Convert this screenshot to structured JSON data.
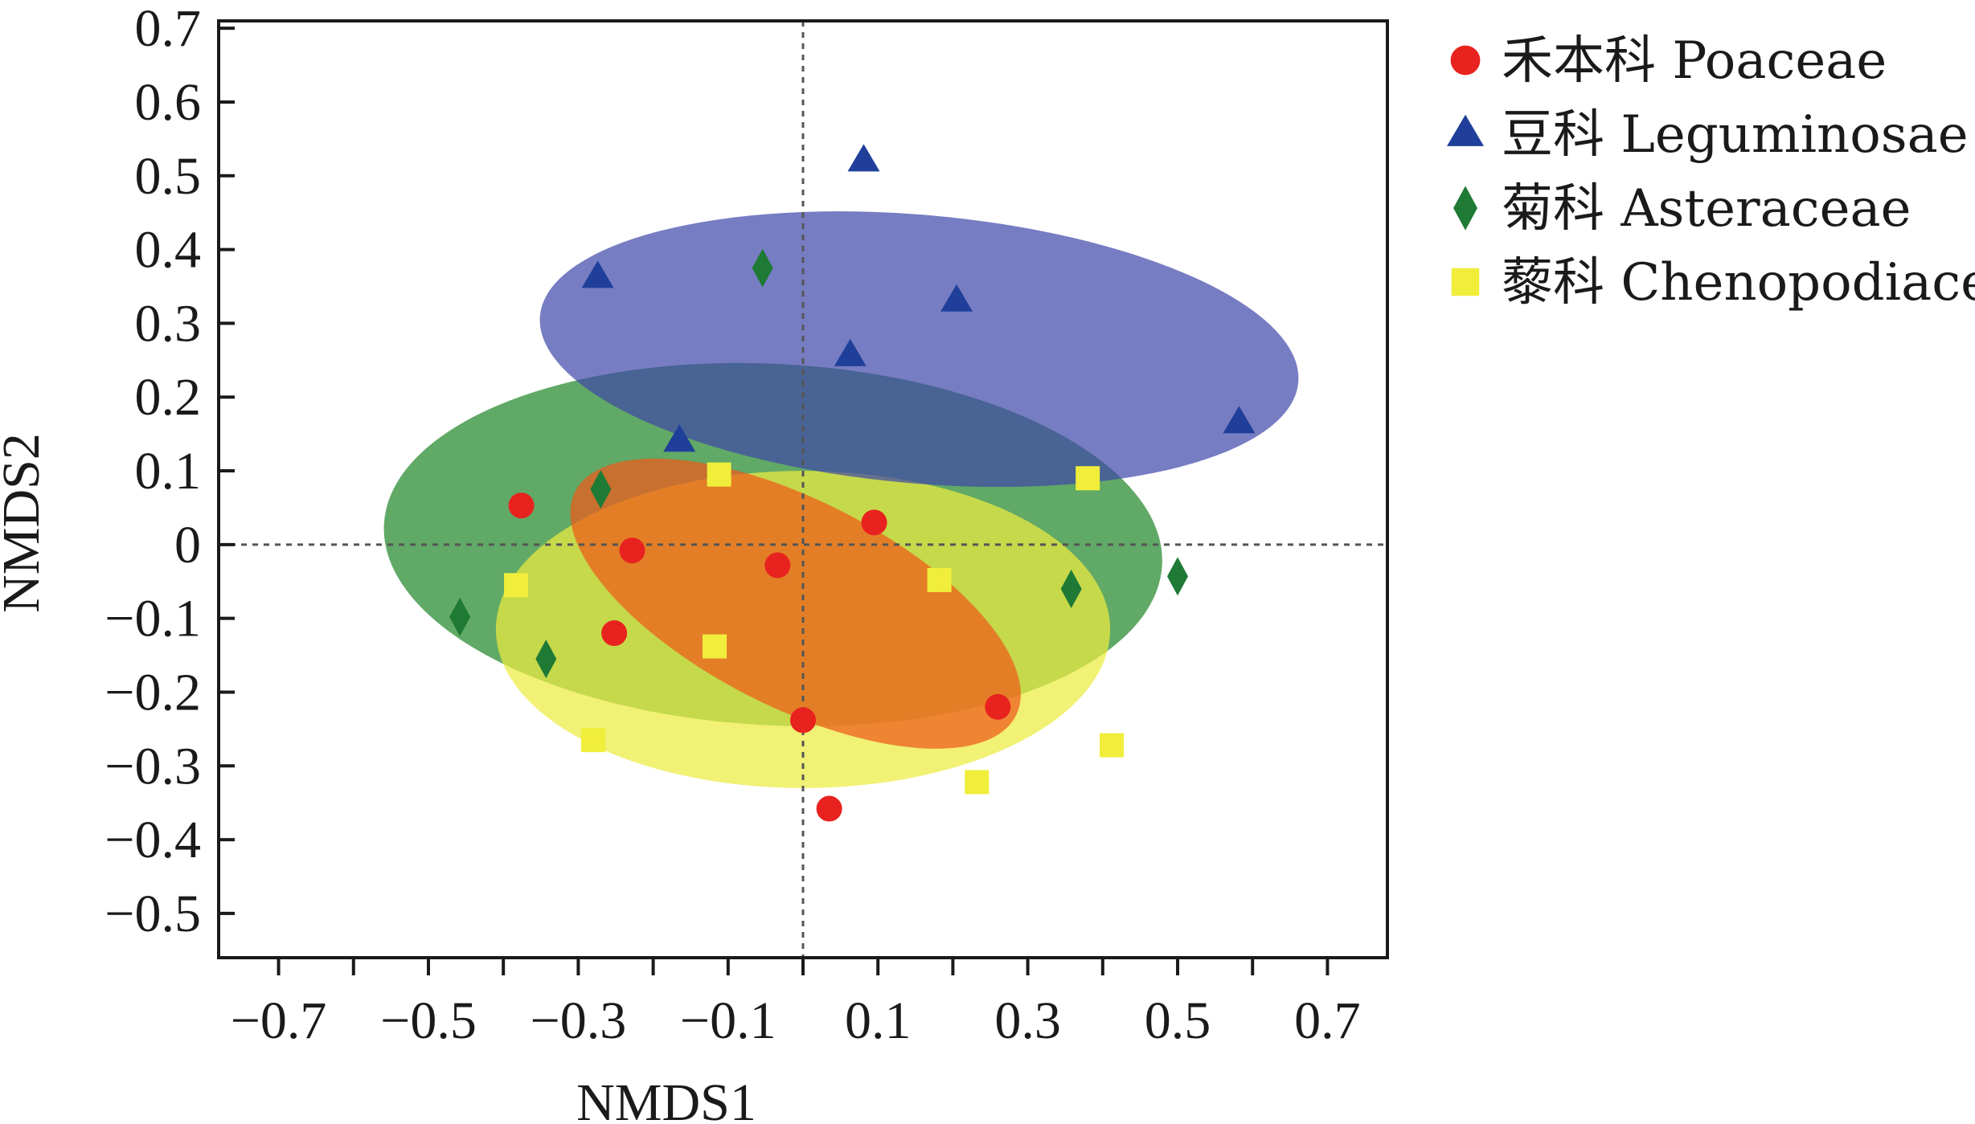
{
  "chart_data": {
    "type": "scatter",
    "xlabel": "NMDS1",
    "ylabel": "NMDS2",
    "xlim": [
      -0.78,
      0.78
    ],
    "ylim": [
      -0.56,
      0.71
    ],
    "xticks": [
      -0.7,
      -0.6,
      -0.5,
      -0.4,
      -0.3,
      -0.2,
      -0.1,
      0,
      0.1,
      0.2,
      0.3,
      0.4,
      0.5,
      0.6,
      0.7
    ],
    "xtick_labels": [
      {
        "value": -0.7,
        "label": "−0.7"
      },
      {
        "value": -0.5,
        "label": "−0.5"
      },
      {
        "value": -0.3,
        "label": "−0.3"
      },
      {
        "value": -0.1,
        "label": "−0.1"
      },
      {
        "value": 0.1,
        "label": "0.1"
      },
      {
        "value": 0.3,
        "label": "0.3"
      },
      {
        "value": 0.5,
        "label": "0.5"
      },
      {
        "value": 0.7,
        "label": "0.7"
      }
    ],
    "yticks": [
      {
        "value": 0.7,
        "label": "0.7"
      },
      {
        "value": 0.6,
        "label": "0.6"
      },
      {
        "value": 0.5,
        "label": "0.5"
      },
      {
        "value": 0.4,
        "label": "0.4"
      },
      {
        "value": 0.3,
        "label": "0.3"
      },
      {
        "value": 0.2,
        "label": "0.2"
      },
      {
        "value": 0.1,
        "label": "0.1"
      },
      {
        "value": 0,
        "label": "0"
      },
      {
        "value": -0.1,
        "label": "−0.1"
      },
      {
        "value": -0.2,
        "label": "−0.2"
      },
      {
        "value": -0.3,
        "label": "−0.3"
      },
      {
        "value": -0.4,
        "label": "−0.4"
      },
      {
        "value": -0.5,
        "label": "−0.5"
      }
    ],
    "reference_lines": {
      "x": 0,
      "y": 0,
      "style": "dotted"
    },
    "grid": false,
    "legend_position": "right",
    "series": [
      {
        "name": "禾本科 Poaceae",
        "marker": "circle",
        "color": "#e8221e",
        "ellipse_color": "#ee5a1a",
        "points": [
          [
            -0.376,
            0.053
          ],
          [
            -0.228,
            -0.008
          ],
          [
            -0.252,
            -0.12
          ],
          [
            -0.034,
            -0.028
          ],
          [
            0.095,
            0.03
          ],
          [
            0.0,
            -0.238
          ],
          [
            0.035,
            -0.358
          ],
          [
            0.26,
            -0.22
          ]
        ],
        "ellipse": {
          "cx": -0.01,
          "cy": -0.08,
          "rx": 0.33,
          "ry": 0.14,
          "angle_deg": -27
        }
      },
      {
        "name": "豆科 Leguminosae",
        "marker": "triangle",
        "color": "#1f3f9a",
        "ellipse_color": "#3d46a8",
        "points": [
          [
            0.081,
            0.52
          ],
          [
            -0.274,
            0.362
          ],
          [
            0.205,
            0.33
          ],
          [
            0.063,
            0.256
          ],
          [
            -0.165,
            0.14
          ],
          [
            0.582,
            0.165
          ]
        ],
        "ellipse": {
          "cx": 0.155,
          "cy": 0.265,
          "rx": 0.508,
          "ry": 0.182,
          "angle_deg": -5
        }
      },
      {
        "name": "菊科 Asteraceae",
        "marker": "diamond",
        "color": "#1e7a35",
        "ellipse_color": "#3a9440",
        "points": [
          [
            -0.054,
            0.375
          ],
          [
            -0.27,
            0.075
          ],
          [
            -0.458,
            -0.098
          ],
          [
            -0.343,
            -0.155
          ],
          [
            0.358,
            -0.06
          ],
          [
            0.5,
            -0.043
          ]
        ],
        "ellipse": {
          "cx": -0.04,
          "cy": 0.0,
          "rx": 0.52,
          "ry": 0.245,
          "angle_deg": -3
        }
      },
      {
        "name": "藜科 Chenopodiaceae",
        "marker": "square",
        "color": "#f0ee3a",
        "ellipse_color": "#ecec40",
        "points": [
          [
            -0.112,
            0.095
          ],
          [
            0.38,
            0.09
          ],
          [
            -0.383,
            -0.055
          ],
          [
            0.182,
            -0.048
          ],
          [
            -0.118,
            -0.138
          ],
          [
            -0.28,
            -0.265
          ],
          [
            0.232,
            -0.322
          ],
          [
            0.412,
            -0.272
          ]
        ],
        "ellipse": {
          "cx": 0.0,
          "cy": -0.115,
          "rx": 0.41,
          "ry": 0.215,
          "angle_deg": 0
        }
      }
    ]
  }
}
